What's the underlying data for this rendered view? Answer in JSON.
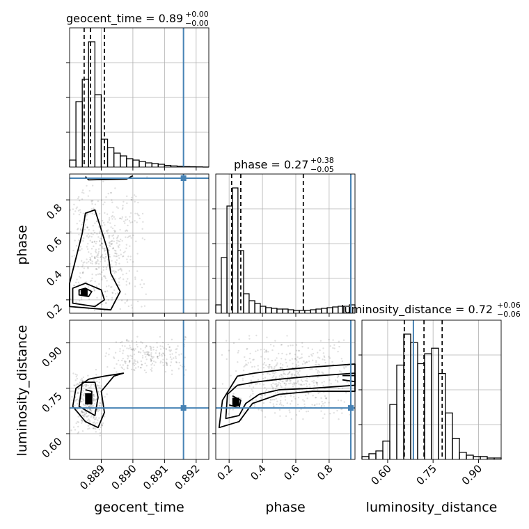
{
  "colors": {
    "truth": "#4682b4",
    "hist": "#000000",
    "grid": "#b0b0b0",
    "scatter": "#000000"
  },
  "chart_data": {
    "type": "corner",
    "parameters": [
      "geocent_time",
      "phase",
      "luminosity_distance"
    ],
    "truths": {
      "geocent_time": 0.8916,
      "phase": 0.93,
      "luminosity_distance": 0.685
    },
    "grid": true,
    "panels": {
      "geocent_time": {
        "title_main": "geocent_time = 0.89",
        "title_plus": "+0.00",
        "title_minus": "−0.00",
        "quantiles": [
          0.88846,
          0.88866,
          0.8891
        ],
        "xlim": [
          0.888,
          0.8924
        ],
        "hist_bins": [
          0.888,
          0.8882,
          0.8884,
          0.8886,
          0.8888,
          0.889,
          0.8892,
          0.8894,
          0.8896,
          0.8898,
          0.89,
          0.8902,
          0.8904,
          0.8906,
          0.8908,
          0.891,
          0.8912,
          0.8914,
          0.8916,
          0.8918,
          0.892,
          0.8922,
          0.8924
        ],
        "hist_counts": [
          0.05,
          0.47,
          0.63,
          0.9,
          0.52,
          0.2,
          0.14,
          0.1,
          0.08,
          0.06,
          0.05,
          0.04,
          0.03,
          0.025,
          0.02,
          0.012,
          0.008,
          0.005,
          0.003,
          0.002,
          0.001,
          0
        ]
      },
      "phase": {
        "title_main": "phase = 0.27",
        "title_plus": "+0.38",
        "title_minus": "−0.05",
        "quantiles": [
          0.215,
          0.27,
          0.645
        ],
        "xlim": [
          0.12,
          0.955
        ],
        "hist_bins": [
          0.12,
          0.153,
          0.187,
          0.22,
          0.253,
          0.287,
          0.32,
          0.354,
          0.387,
          0.42,
          0.454,
          0.487,
          0.521,
          0.554,
          0.587,
          0.621,
          0.654,
          0.688,
          0.721,
          0.754,
          0.788,
          0.821,
          0.854,
          0.888,
          0.921,
          0.955
        ],
        "hist_counts": [
          0.06,
          0.4,
          0.77,
          0.9,
          0.45,
          0.14,
          0.09,
          0.07,
          0.05,
          0.04,
          0.035,
          0.03,
          0.03,
          0.025,
          0.02,
          0.02,
          0.02,
          0.025,
          0.03,
          0.035,
          0.04,
          0.045,
          0.05,
          0.05,
          0.06
        ]
      },
      "luminosity_distance": {
        "title_main": "luminosity_distance = 0.72",
        "title_plus": "+0.06",
        "title_minus": "−0.06",
        "quantiles": [
          0.655,
          0.72,
          0.78
        ],
        "xlim": [
          0.515,
          0.975
        ],
        "hist_bins": [
          0.515,
          0.538,
          0.561,
          0.584,
          0.607,
          0.63,
          0.653,
          0.676,
          0.699,
          0.722,
          0.745,
          0.768,
          0.791,
          0.814,
          0.837,
          0.86,
          0.883,
          0.906,
          0.929,
          0.952,
          0.975
        ],
        "hist_counts": [
          0.02,
          0.04,
          0.06,
          0.13,
          0.39,
          0.67,
          0.89,
          0.83,
          0.68,
          0.75,
          0.79,
          0.61,
          0.33,
          0.15,
          0.05,
          0.03,
          0.02,
          0.02,
          0.01,
          0.01
        ]
      }
    },
    "ticks": {
      "geocent_time": [
        "0.889",
        "0.890",
        "0.891",
        "0.892"
      ],
      "phase": [
        "0.2",
        "0.4",
        "0.6",
        "0.8"
      ],
      "luminosity_distance": [
        "0.60",
        "0.75",
        "0.90"
      ]
    },
    "ylims": {
      "phase": [
        0.12,
        0.955
      ],
      "luminosity_distance": [
        0.515,
        0.975
      ]
    },
    "contours_2d": {
      "phase_vs_geocent_time": [
        [
          [
            0.8883,
            0.23
          ],
          [
            0.8886,
            0.22
          ],
          [
            0.8887,
            0.25
          ],
          [
            0.8885,
            0.27
          ],
          [
            0.8883,
            0.26
          ]
        ],
        [
          [
            0.8881,
            0.18
          ],
          [
            0.8888,
            0.16
          ],
          [
            0.8891,
            0.2
          ],
          [
            0.889,
            0.26
          ],
          [
            0.8885,
            0.3
          ],
          [
            0.8881,
            0.27
          ]
        ],
        [
          [
            0.888,
            0.16
          ],
          [
            0.8893,
            0.14
          ],
          [
            0.8896,
            0.25
          ],
          [
            0.8893,
            0.36
          ],
          [
            0.8892,
            0.5
          ],
          [
            0.889,
            0.62
          ],
          [
            0.8888,
            0.74
          ],
          [
            0.8885,
            0.72
          ],
          [
            0.8884,
            0.6
          ],
          [
            0.8882,
            0.45
          ],
          [
            0.888,
            0.3
          ]
        ],
        [
          [
            0.8885,
            0.94
          ],
          [
            0.8886,
            0.92
          ],
          [
            0.8898,
            0.925
          ],
          [
            0.89,
            0.945
          ]
        ]
      ],
      "luminosity_distance_vs_geocent_time": [
        [
          [
            0.8885,
            0.71
          ],
          [
            0.8887,
            0.7
          ],
          [
            0.8887,
            0.74
          ],
          [
            0.8885,
            0.745
          ]
        ],
        [
          [
            0.8883,
            0.69
          ],
          [
            0.8888,
            0.66
          ],
          [
            0.8889,
            0.72
          ],
          [
            0.8888,
            0.77
          ],
          [
            0.8884,
            0.77
          ]
        ],
        [
          [
            0.8881,
            0.69
          ],
          [
            0.8885,
            0.64
          ],
          [
            0.8889,
            0.62
          ],
          [
            0.8891,
            0.67
          ],
          [
            0.889,
            0.74
          ],
          [
            0.8894,
            0.79
          ],
          [
            0.8897,
            0.8
          ],
          [
            0.8891,
            0.79
          ],
          [
            0.8886,
            0.78
          ],
          [
            0.8882,
            0.75
          ]
        ]
      ],
      "luminosity_distance_vs_phase": [
        [
          [
            0.2,
            0.695
          ],
          [
            0.26,
            0.685
          ],
          [
            0.27,
            0.71
          ],
          [
            0.22,
            0.725
          ]
        ],
        [
          [
            0.18,
            0.65
          ],
          [
            0.26,
            0.66
          ],
          [
            0.3,
            0.7
          ],
          [
            0.38,
            0.73
          ],
          [
            0.5,
            0.745
          ],
          [
            0.7,
            0.75
          ],
          [
            0.955,
            0.76
          ],
          [
            0.955,
            0.8
          ],
          [
            0.7,
            0.79
          ],
          [
            0.5,
            0.78
          ],
          [
            0.35,
            0.77
          ],
          [
            0.25,
            0.76
          ],
          [
            0.19,
            0.73
          ]
        ],
        [
          [
            0.14,
            0.62
          ],
          [
            0.26,
            0.64
          ],
          [
            0.34,
            0.7
          ],
          [
            0.5,
            0.73
          ],
          [
            0.7,
            0.74
          ],
          [
            0.955,
            0.74
          ],
          [
            0.955,
            0.83
          ],
          [
            0.7,
            0.82
          ],
          [
            0.5,
            0.81
          ],
          [
            0.35,
            0.8
          ],
          [
            0.25,
            0.79
          ],
          [
            0.16,
            0.71
          ]
        ],
        [
          [
            0.88,
            0.778
          ],
          [
            0.955,
            0.772
          ],
          [
            0.955,
            0.792
          ],
          [
            0.88,
            0.792
          ]
        ]
      ]
    }
  }
}
